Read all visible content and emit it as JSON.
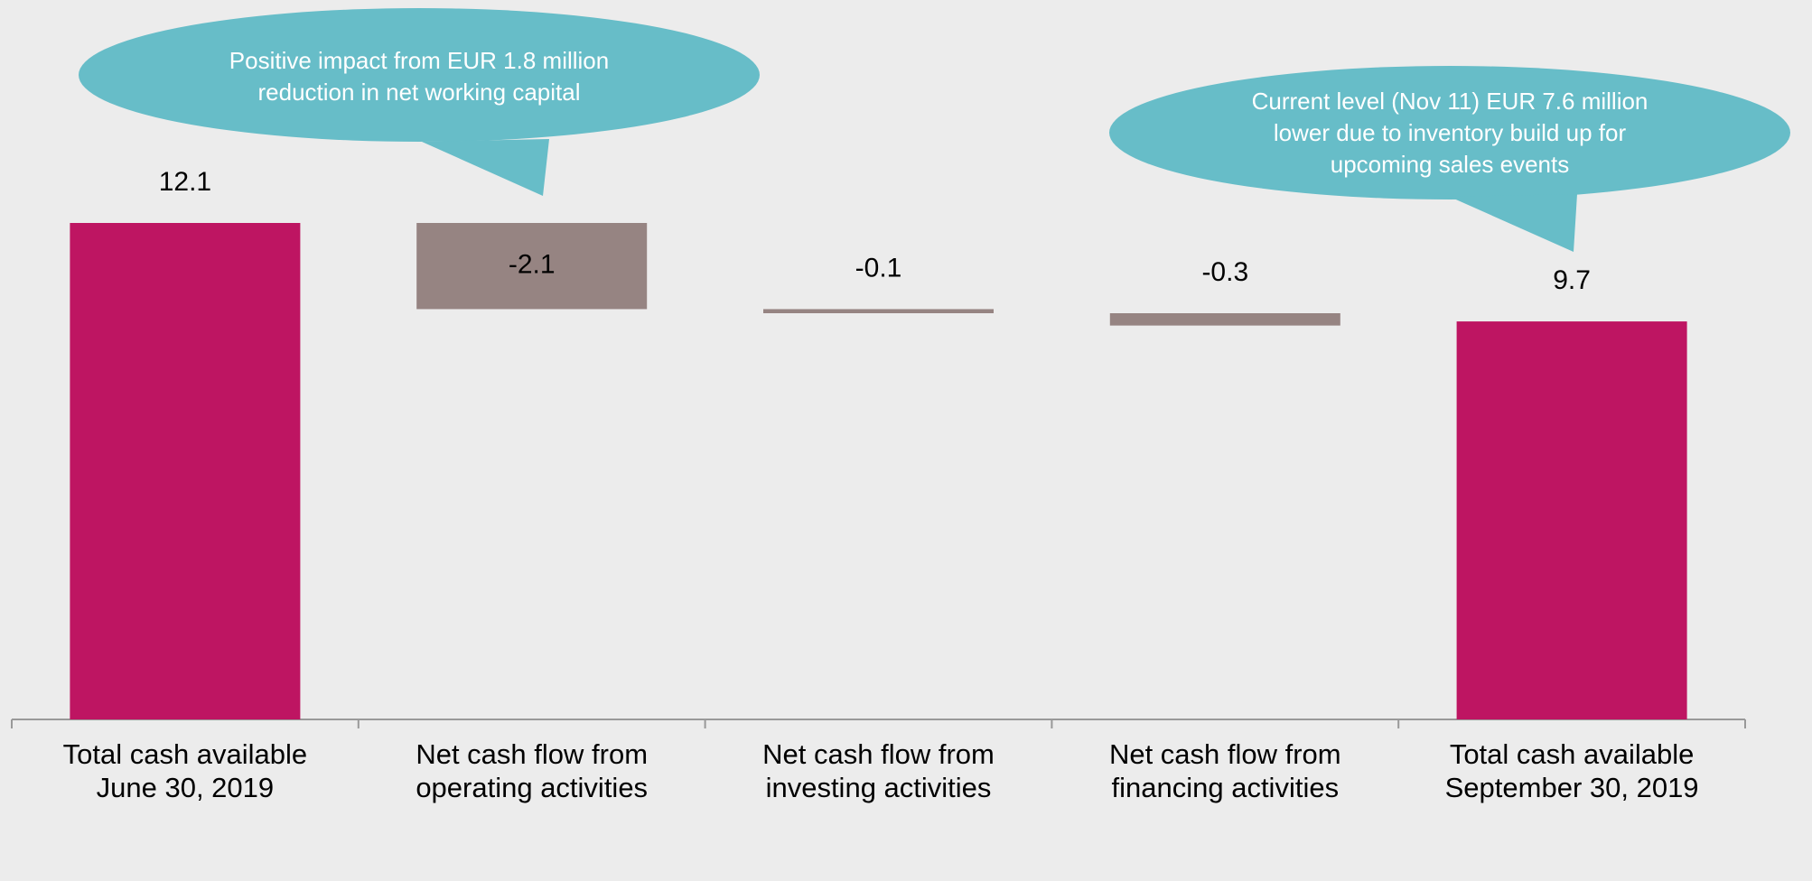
{
  "chart_data": {
    "type": "waterfall",
    "categories": [
      "Total cash available June 30, 2019",
      "Net cash flow from operating activities",
      "Net cash flow from investing activities",
      "Net cash flow from financing activities",
      "Total cash available September 30, 2019"
    ],
    "values": [
      12.1,
      -2.1,
      -0.1,
      -0.3,
      9.7
    ],
    "total_color": "#be1562",
    "change_color": "#968482",
    "annotations": [
      {
        "text": "Positive impact from EUR 1.8 million reduction in net working capital",
        "color": "#67bdc8"
      },
      {
        "text": "Current level (Nov 11) EUR 7.6 million lower due to inventory build up for upcoming sales events",
        "color": "#67bdc8"
      }
    ]
  }
}
